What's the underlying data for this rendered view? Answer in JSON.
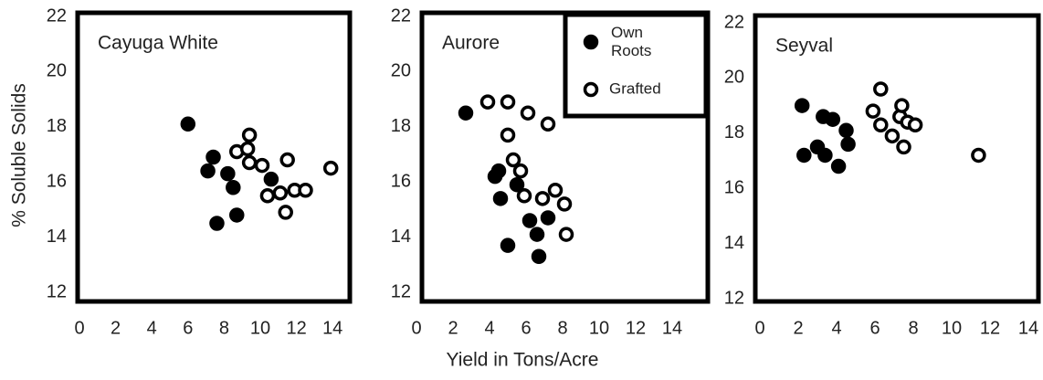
{
  "ylabel": "% Soluble Solids",
  "xlabel": "Yield in Tons/Acre",
  "chart_data": [
    {
      "type": "scatter",
      "title": "Cayuga White",
      "xlim": [
        0,
        14
      ],
      "ylim": [
        12,
        22
      ],
      "xticks": [
        0,
        2,
        4,
        6,
        8,
        10,
        12,
        14
      ],
      "yticks": [
        12,
        14,
        16,
        18,
        20,
        22
      ],
      "series": [
        {
          "color": "#000000",
          "x": [
            6.0,
            7.4,
            7.1,
            8.2,
            8.5,
            10.6,
            7.6,
            8.7
          ],
          "values": [
            18.1,
            16.9,
            16.4,
            16.3,
            15.8,
            16.1,
            14.5,
            14.8
          ]
        },
        {
          "color": "#ffffff",
          "x": [
            9.4,
            8.7,
            9.3,
            9.4,
            10.1,
            11.5,
            10.4,
            11.1,
            11.9,
            12.5,
            11.4,
            13.9
          ],
          "values": [
            17.7,
            17.1,
            17.2,
            16.7,
            16.6,
            16.8,
            15.5,
            15.6,
            15.7,
            15.7,
            14.9,
            16.5
          ]
        }
      ]
    },
    {
      "type": "scatter",
      "title": "Aurore",
      "legend": "upper right",
      "xlim": [
        0,
        14
      ],
      "ylim": [
        12,
        22
      ],
      "xticks": [
        0,
        2,
        4,
        6,
        8,
        10,
        12,
        14
      ],
      "yticks": [
        12,
        14,
        16,
        18,
        20,
        22
      ],
      "series": [
        {
          "name": "Own Roots",
          "color": "#000000",
          "x": [
            2.7,
            4.5,
            4.3,
            4.6,
            5.5,
            6.2,
            7.2,
            6.6,
            5.0,
            6.7
          ],
          "values": [
            18.5,
            16.4,
            16.2,
            15.4,
            15.9,
            14.6,
            14.7,
            14.1,
            13.7,
            13.3
          ]
        },
        {
          "name": "Grafted",
          "color": "#ffffff",
          "x": [
            3.9,
            5.0,
            5.0,
            6.1,
            7.2,
            5.3,
            5.7,
            5.9,
            6.9,
            7.6,
            8.1,
            8.2
          ],
          "values": [
            18.9,
            18.9,
            17.7,
            18.5,
            18.1,
            16.8,
            16.4,
            15.5,
            15.4,
            15.7,
            15.2,
            14.1
          ]
        }
      ]
    },
    {
      "type": "scatter",
      "title": "Seyval",
      "xlim": [
        0,
        14
      ],
      "ylim": [
        12,
        22
      ],
      "xticks": [
        0,
        2,
        4,
        6,
        8,
        10,
        12,
        14
      ],
      "yticks": [
        12,
        14,
        16,
        18,
        20,
        22
      ],
      "series": [
        {
          "color": "#000000",
          "x": [
            2.2,
            3.3,
            3.8,
            4.5,
            2.3,
            3.0,
            3.4,
            4.6,
            4.1
          ],
          "values": [
            19.0,
            18.6,
            18.5,
            18.1,
            17.2,
            17.5,
            17.2,
            17.6,
            16.8
          ]
        },
        {
          "color": "#ffffff",
          "x": [
            6.3,
            5.9,
            6.3,
            6.9,
            7.3,
            7.4,
            7.7,
            8.1,
            7.5,
            11.4
          ],
          "values": [
            19.6,
            18.8,
            18.3,
            17.9,
            18.6,
            19.0,
            18.4,
            18.3,
            17.5,
            17.2
          ]
        }
      ]
    }
  ]
}
